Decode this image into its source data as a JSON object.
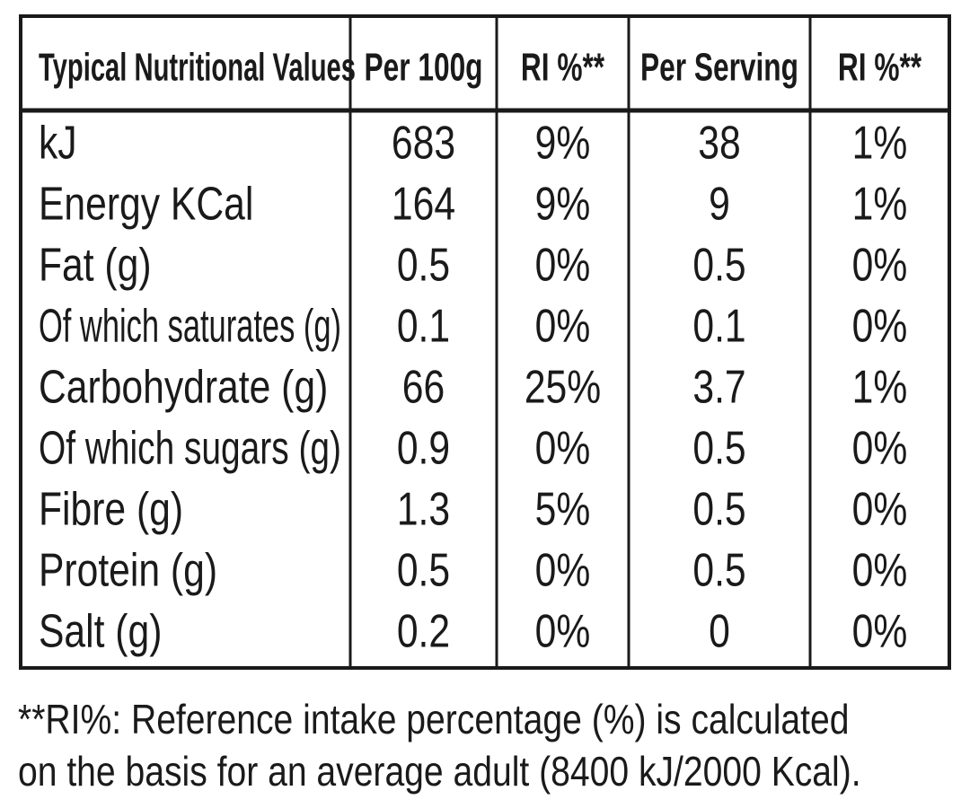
{
  "table": {
    "header": [
      "Typical Nutritional Values",
      "Per 100g",
      "RI %**",
      "Per Serving",
      "RI %**"
    ],
    "rows": [
      [
        "kJ",
        "683",
        "9%",
        "38",
        "1%"
      ],
      [
        "Energy KCal",
        "164",
        "9%",
        "9",
        "1%"
      ],
      [
        "Fat (g)",
        "0.5",
        "0%",
        "0.5",
        "0%"
      ],
      [
        "Of which saturates (g)",
        "0.1",
        "0%",
        "0.1",
        "0%"
      ],
      [
        "Carbohydrate (g)",
        "66",
        "25%",
        "3.7",
        "1%"
      ],
      [
        "Of which sugars (g)",
        "0.9",
        "0%",
        "0.5",
        "0%"
      ],
      [
        "Fibre (g)",
        "1.3",
        "5%",
        "0.5",
        "0%"
      ],
      [
        "Protein (g)",
        "0.5",
        "0%",
        "0.5",
        "0%"
      ],
      [
        "Salt (g)",
        "0.2",
        "0%",
        "0",
        "0%"
      ]
    ]
  },
  "footnote": [
    "**RI%: Reference intake percentage (%) is calculated",
    "on the basis for an average adult (8400 kJ/2000 Kcal)."
  ]
}
